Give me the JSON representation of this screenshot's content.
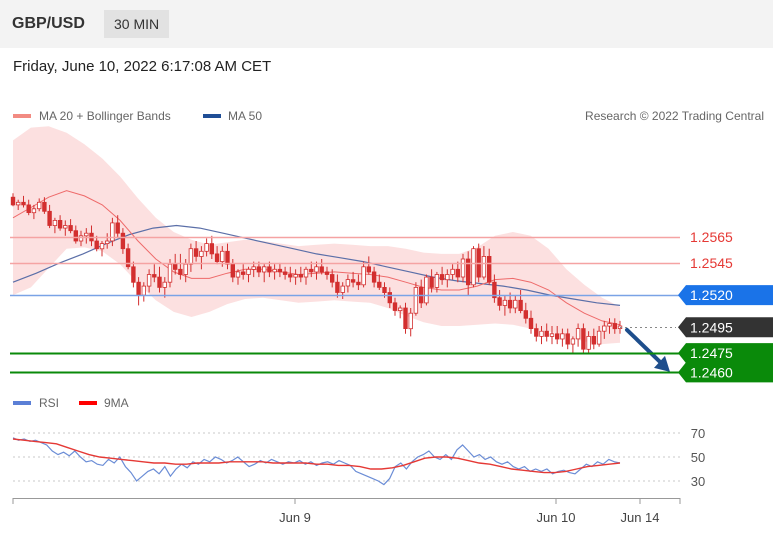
{
  "header": {
    "symbol": "GBP/USD",
    "timeframe": "30 MIN"
  },
  "timestamp": "Friday, June 10, 2022 6:17:08 AM CET",
  "credit": "Research © 2022 Trading Central",
  "colors": {
    "resistance": "#e53935",
    "pivot": "#1a73e8",
    "current": "#333333",
    "support": "#0a8a0a",
    "candle": "#d32f2f",
    "bb_fill": "#fbd5d5",
    "ma50": "#5b6fa8",
    "rsi": "#6b8dd6",
    "rsi_ma": "#e53935",
    "arrow": "#1e4e8c"
  },
  "chart_data": [
    {
      "type": "line",
      "legend": [
        {
          "label": "MA 20 + Bollinger Bands",
          "color": "#f28b82"
        },
        {
          "label": "MA 50",
          "color": "#1f4e96"
        }
      ],
      "x_ticks": [
        "Jun 9",
        "Jun 10",
        "Jun 14"
      ],
      "ylim": [
        1.2447,
        1.265
      ],
      "levels": [
        {
          "label": "1.2565",
          "value": 1.2565,
          "role": "resistance"
        },
        {
          "label": "1.2545",
          "value": 1.2545,
          "role": "resistance"
        },
        {
          "label": "1.2520",
          "value": 1.252,
          "role": "pivot"
        },
        {
          "label": "1.2495",
          "value": 1.2495,
          "role": "current"
        },
        {
          "label": "1.2475",
          "value": 1.2475,
          "role": "support"
        },
        {
          "label": "1.2460",
          "value": 1.246,
          "role": "support"
        }
      ],
      "series": [
        {
          "name": "MA 20 + Bollinger Bands",
          "values": [
            1.258,
            1.2588,
            1.2596,
            1.2601,
            1.2597,
            1.259,
            1.2578,
            1.2562,
            1.2548,
            1.2538,
            1.2533,
            1.2533,
            1.2537,
            1.254,
            1.254,
            1.2538,
            1.2536,
            1.2537,
            1.2538,
            1.2537,
            1.2536,
            1.2534,
            1.253,
            1.2526,
            1.2524,
            1.2524,
            1.2527,
            1.2532,
            1.2533,
            1.253,
            1.2524,
            1.2514,
            1.2506,
            1.25,
            1.2497
          ]
        },
        {
          "name": "MA 50",
          "values": [
            1.253,
            1.2537,
            1.2545,
            1.2552,
            1.256,
            1.2567,
            1.2572,
            1.2574,
            1.2572,
            1.2568,
            1.2564,
            1.256,
            1.2556,
            1.2552,
            1.2549,
            1.2546,
            1.2542,
            1.2538,
            1.2534,
            1.2531,
            1.2529,
            1.2527,
            1.2524,
            1.252,
            1.2517,
            1.2514,
            1.2512
          ]
        }
      ],
      "candles": [
        [
          1.2596,
          1.2599,
          1.2589,
          1.259
        ],
        [
          1.259,
          1.2594,
          1.2586,
          1.2592
        ],
        [
          1.2592,
          1.2597,
          1.2588,
          1.259
        ],
        [
          1.259,
          1.2594,
          1.2582,
          1.2584
        ],
        [
          1.2584,
          1.259,
          1.2579,
          1.2587
        ],
        [
          1.2587,
          1.2595,
          1.2585,
          1.2592
        ],
        [
          1.2592,
          1.2596,
          1.2583,
          1.2585
        ],
        [
          1.2585,
          1.259,
          1.2572,
          1.2574
        ],
        [
          1.2574,
          1.258,
          1.2568,
          1.2578
        ],
        [
          1.2578,
          1.2582,
          1.257,
          1.2572
        ],
        [
          1.2572,
          1.2578,
          1.2566,
          1.2574
        ],
        [
          1.2574,
          1.2579,
          1.2568,
          1.257
        ],
        [
          1.257,
          1.2574,
          1.256,
          1.2562
        ],
        [
          1.2562,
          1.257,
          1.2558,
          1.2566
        ],
        [
          1.2566,
          1.2572,
          1.256,
          1.2568
        ],
        [
          1.2568,
          1.2574,
          1.2558,
          1.2562
        ],
        [
          1.2562,
          1.2566,
          1.2554,
          1.2556
        ],
        [
          1.2556,
          1.2562,
          1.255,
          1.256
        ],
        [
          1.256,
          1.2568,
          1.2556,
          1.2562
        ],
        [
          1.2562,
          1.258,
          1.2558,
          1.2576
        ],
        [
          1.2576,
          1.2582,
          1.2565,
          1.2568
        ],
        [
          1.2568,
          1.2572,
          1.2552,
          1.2556
        ],
        [
          1.2556,
          1.256,
          1.254,
          1.2542
        ],
        [
          1.2542,
          1.2546,
          1.2526,
          1.253
        ],
        [
          1.253,
          1.2534,
          1.2512,
          1.252
        ],
        [
          1.252,
          1.253,
          1.2515,
          1.2527
        ],
        [
          1.2527,
          1.254,
          1.2522,
          1.2536
        ],
        [
          1.2536,
          1.2544,
          1.253,
          1.2534
        ],
        [
          1.2534,
          1.2542,
          1.2522,
          1.2526
        ],
        [
          1.2526,
          1.2534,
          1.2518,
          1.253
        ],
        [
          1.253,
          1.2548,
          1.2526,
          1.2544
        ],
        [
          1.2544,
          1.2552,
          1.2536,
          1.254
        ],
        [
          1.254,
          1.2552,
          1.2532,
          1.2536
        ],
        [
          1.2536,
          1.2548,
          1.253,
          1.2544
        ],
        [
          1.2544,
          1.256,
          1.2538,
          1.2556
        ],
        [
          1.2556,
          1.2562,
          1.2546,
          1.255
        ],
        [
          1.255,
          1.2558,
          1.254,
          1.2554
        ],
        [
          1.2554,
          1.2564,
          1.255,
          1.256
        ],
        [
          1.256,
          1.2566,
          1.2548,
          1.2552
        ],
        [
          1.2552,
          1.2558,
          1.2544,
          1.2546
        ],
        [
          1.2546,
          1.2558,
          1.2542,
          1.2554
        ],
        [
          1.2554,
          1.256,
          1.254,
          1.2544
        ],
        [
          1.2544,
          1.2548,
          1.253,
          1.2534
        ],
        [
          1.2534,
          1.254,
          1.2528,
          1.2538
        ],
        [
          1.2538,
          1.2544,
          1.2532,
          1.2536
        ],
        [
          1.2536,
          1.2542,
          1.253,
          1.254
        ],
        [
          1.254,
          1.2546,
          1.2534,
          1.2542
        ],
        [
          1.2542,
          1.2546,
          1.2534,
          1.2538
        ],
        [
          1.2538,
          1.2544,
          1.253,
          1.2542
        ],
        [
          1.2542,
          1.2546,
          1.2534,
          1.2538
        ],
        [
          1.2538,
          1.2544,
          1.2532,
          1.254
        ],
        [
          1.254,
          1.2545,
          1.2534,
          1.2538
        ],
        [
          1.2538,
          1.2542,
          1.2532,
          1.2536
        ],
        [
          1.2536,
          1.2542,
          1.253,
          1.2534
        ],
        [
          1.2534,
          1.254,
          1.2528,
          1.2536
        ],
        [
          1.2536,
          1.2542,
          1.253,
          1.2534
        ],
        [
          1.2534,
          1.2542,
          1.2528,
          1.254
        ],
        [
          1.254,
          1.2546,
          1.2534,
          1.2538
        ],
        [
          1.2538,
          1.2546,
          1.2532,
          1.2542
        ],
        [
          1.2542,
          1.2548,
          1.2536,
          1.2538
        ],
        [
          1.2538,
          1.2542,
          1.2532,
          1.2536
        ],
        [
          1.2536,
          1.254,
          1.2526,
          1.253
        ],
        [
          1.253,
          1.2536,
          1.2518,
          1.2522
        ],
        [
          1.2522,
          1.253,
          1.2517,
          1.2527
        ],
        [
          1.2527,
          1.2536,
          1.2522,
          1.2532
        ],
        [
          1.2532,
          1.2538,
          1.2526,
          1.253
        ],
        [
          1.253,
          1.2536,
          1.2524,
          1.2528
        ],
        [
          1.2528,
          1.2546,
          1.2526,
          1.2542
        ],
        [
          1.2542,
          1.255,
          1.2536,
          1.2538
        ],
        [
          1.2538,
          1.2542,
          1.2526,
          1.253
        ],
        [
          1.253,
          1.2536,
          1.2524,
          1.2526
        ],
        [
          1.2526,
          1.253,
          1.2518,
          1.2522
        ],
        [
          1.2522,
          1.2526,
          1.251,
          1.2514
        ],
        [
          1.2514,
          1.2518,
          1.2504,
          1.2508
        ],
        [
          1.2508,
          1.2512,
          1.2502,
          1.251
        ],
        [
          1.251,
          1.2514,
          1.249,
          1.2494
        ],
        [
          1.2494,
          1.251,
          1.2488,
          1.2506
        ],
        [
          1.2506,
          1.253,
          1.2504,
          1.2526
        ],
        [
          1.2526,
          1.2532,
          1.251,
          1.2514
        ],
        [
          1.2514,
          1.2536,
          1.2512,
          1.2534
        ],
        [
          1.2534,
          1.254,
          1.2522,
          1.2526
        ],
        [
          1.2526,
          1.2538,
          1.2522,
          1.2536
        ],
        [
          1.2536,
          1.2542,
          1.2528,
          1.2532
        ],
        [
          1.2532,
          1.254,
          1.2526,
          1.2536
        ],
        [
          1.2536,
          1.2544,
          1.2532,
          1.254
        ],
        [
          1.254,
          1.2546,
          1.253,
          1.2534
        ],
        [
          1.2534,
          1.2552,
          1.253,
          1.2548
        ],
        [
          1.2548,
          1.2554,
          1.252,
          1.2528
        ],
        [
          1.2528,
          1.2558,
          1.2526,
          1.2556
        ],
        [
          1.2556,
          1.256,
          1.253,
          1.2534
        ],
        [
          1.2534,
          1.2558,
          1.2532,
          1.255
        ],
        [
          1.255,
          1.2556,
          1.2528,
          1.253
        ],
        [
          1.253,
          1.2536,
          1.2514,
          1.2518
        ],
        [
          1.2518,
          1.2524,
          1.2508,
          1.2512
        ],
        [
          1.2512,
          1.252,
          1.2504,
          1.2516
        ],
        [
          1.2516,
          1.2522,
          1.2506,
          1.251
        ],
        [
          1.251,
          1.252,
          1.2506,
          1.2516
        ],
        [
          1.2516,
          1.2524,
          1.2506,
          1.2508
        ],
        [
          1.2508,
          1.2514,
          1.2498,
          1.2502
        ],
        [
          1.2502,
          1.2508,
          1.249,
          1.2494
        ],
        [
          1.2494,
          1.2498,
          1.2484,
          1.2488
        ],
        [
          1.2488,
          1.2496,
          1.2482,
          1.2492
        ],
        [
          1.2492,
          1.2498,
          1.2484,
          1.2488
        ],
        [
          1.2488,
          1.2496,
          1.2482,
          1.249
        ],
        [
          1.249,
          1.2496,
          1.2482,
          1.2486
        ],
        [
          1.2486,
          1.2494,
          1.248,
          1.249
        ],
        [
          1.249,
          1.2494,
          1.2478,
          1.2482
        ],
        [
          1.2482,
          1.2488,
          1.2474,
          1.2486
        ],
        [
          1.2486,
          1.2498,
          1.248,
          1.2494
        ],
        [
          1.2494,
          1.2498,
          1.2474,
          1.2478
        ],
        [
          1.2478,
          1.2492,
          1.2474,
          1.2488
        ],
        [
          1.2488,
          1.2494,
          1.2478,
          1.2482
        ],
        [
          1.2482,
          1.2496,
          1.248,
          1.2492
        ],
        [
          1.2492,
          1.25,
          1.2486,
          1.2496
        ],
        [
          1.2496,
          1.2502,
          1.249,
          1.2498
        ],
        [
          1.2498,
          1.2502,
          1.249,
          1.2494
        ],
        [
          1.2494,
          1.25,
          1.249,
          1.2496
        ]
      ]
    },
    {
      "type": "line",
      "legend": [
        {
          "label": "RSI",
          "color": "#5b7fd6"
        },
        {
          "label": "9MA",
          "color": "#ff0000"
        }
      ],
      "ylim": [
        20,
        80
      ],
      "y_ticks": [
        "70",
        "50",
        "30"
      ],
      "series": [
        {
          "name": "RSI",
          "values": [
            66,
            64,
            65,
            63,
            64,
            62,
            60,
            55,
            52,
            54,
            51,
            55,
            50,
            46,
            47,
            44,
            43,
            48,
            45,
            50,
            42,
            37,
            30,
            34,
            38,
            40,
            36,
            42,
            34,
            40,
            44,
            41,
            46,
            44,
            48,
            46,
            50,
            48,
            45,
            47,
            50,
            46,
            42,
            44,
            47,
            45,
            48,
            46,
            44,
            46,
            45,
            47,
            44,
            46,
            43,
            45,
            46,
            44,
            47,
            45,
            43,
            38,
            36,
            34,
            32,
            30,
            27,
            32,
            42,
            45,
            40,
            46,
            50,
            52,
            55,
            50,
            48,
            52,
            48,
            56,
            60,
            55,
            50,
            52,
            48,
            50,
            46,
            44,
            46,
            42,
            40,
            42,
            38,
            40,
            38,
            40,
            36,
            38,
            39,
            37,
            36,
            40,
            44,
            42,
            46,
            44,
            48,
            46,
            45
          ]
        },
        {
          "name": "9MA",
          "values": [
            65,
            64,
            63,
            62,
            61,
            58,
            55,
            52,
            50,
            49,
            48,
            47,
            46,
            45,
            45,
            44,
            44,
            45,
            45,
            45,
            46,
            46,
            46,
            46,
            45,
            45,
            45,
            45,
            44,
            44,
            43,
            43,
            42,
            40,
            40,
            41,
            43,
            46,
            49,
            50,
            50,
            49,
            47,
            45,
            44,
            42,
            40,
            39,
            38,
            37,
            37,
            38,
            40,
            42,
            43,
            44,
            45
          ]
        }
      ]
    }
  ]
}
